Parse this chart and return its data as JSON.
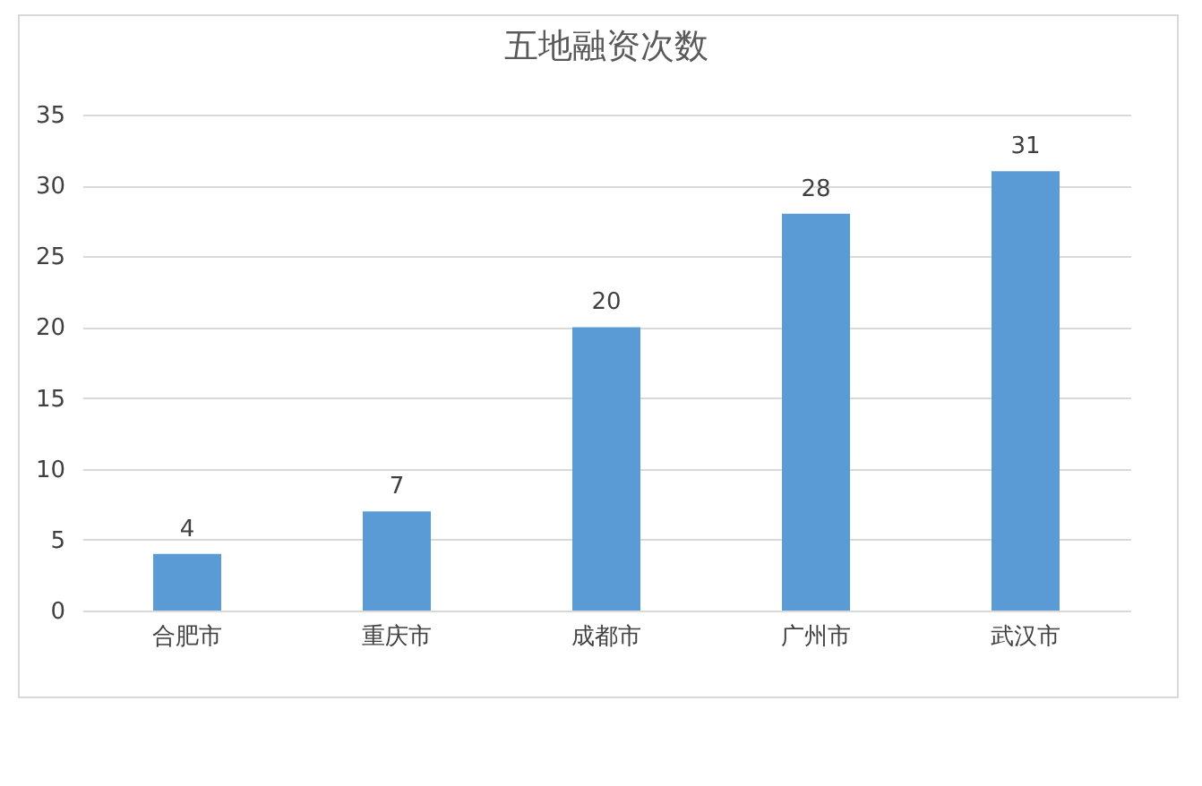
{
  "chart_data": {
    "type": "bar",
    "title": "五地融资次数",
    "categories": [
      "合肥市",
      "重庆市",
      "成都市",
      "广州市",
      "武汉市"
    ],
    "values": [
      4,
      7,
      20,
      28,
      31
    ],
    "color": "#5b9bd5",
    "ylim": [
      0,
      35
    ],
    "yticks": [
      0,
      5,
      10,
      15,
      20,
      25,
      30,
      35
    ],
    "grid": "y",
    "data_labels": true
  }
}
